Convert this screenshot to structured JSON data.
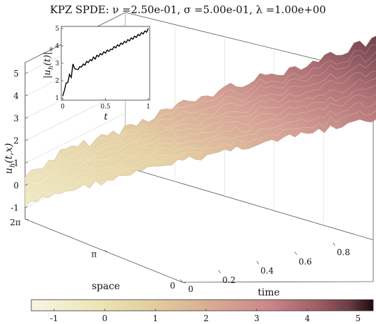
{
  "chart_data": {
    "type": "surface",
    "title": "KPZ SPDE: ν =2.50e-01, σ =5.00e-01, λ =1.00e+00",
    "zlabel": "u_h(t,x)",
    "zlabel_sub": "h",
    "zlabel_prefix": "u",
    "zlabel_suffix": "(t,x)",
    "xlabel": "time",
    "ylabel": "space",
    "time_ticks": [
      "0",
      "0.2",
      "0.4",
      "0.6",
      "0.8"
    ],
    "time_tick_values": [
      0,
      0.2,
      0.4,
      0.6,
      0.8
    ],
    "time_range": [
      0,
      1
    ],
    "space_ticks": [
      "0",
      "π",
      "2π"
    ],
    "space_tick_values": [
      0,
      3.1416,
      6.2832
    ],
    "space_range": [
      0,
      6.2832
    ],
    "z_ticks": [
      "-1",
      "0",
      "1",
      "2",
      "3",
      "4",
      "5"
    ],
    "z_tick_values": [
      -1,
      0,
      1,
      2,
      3,
      4,
      5
    ],
    "z_range": [
      -1.5,
      5.5
    ],
    "grid": true,
    "colorbar": {
      "ticks": [
        "-1",
        "0",
        "1",
        "2",
        "3",
        "4",
        "5"
      ],
      "tick_values": [
        -1,
        0,
        1,
        2,
        3,
        4,
        5
      ],
      "range": [
        -1.45,
        5.3
      ],
      "colors": [
        "#f7f4e6",
        "#ebe6b7",
        "#e2ca9a",
        "#d2a191",
        "#c98287",
        "#9e5d60",
        "#6b3b41",
        "#1f0a0e"
      ]
    },
    "surface_profile": {
      "description_time": [
        0,
        0.1,
        0.2,
        0.3,
        0.4,
        0.5,
        0.6,
        0.7,
        0.8,
        0.9,
        1.0
      ],
      "mean_height": [
        0.1,
        1.0,
        1.5,
        2.0,
        2.6,
        3.0,
        3.5,
        3.8,
        4.2,
        4.6,
        5.0
      ]
    },
    "inset": {
      "type": "line",
      "ylabel": "|u_h(t)|_∞",
      "ylabel_parts": [
        "|u",
        "h",
        "(t)|",
        "∞"
      ],
      "xlabel": "t",
      "x_ticks": [
        "0",
        "0.5",
        "1"
      ],
      "x_tick_values": [
        0,
        0.5,
        1
      ],
      "y_ticks": [
        "1",
        "2",
        "3",
        "4",
        "5"
      ],
      "y_tick_values": [
        1,
        2,
        3,
        4,
        5
      ],
      "xlim": [
        0,
        1
      ],
      "ylim": [
        1,
        5
      ],
      "x": [
        0.0,
        0.02,
        0.04,
        0.06,
        0.08,
        0.1,
        0.12,
        0.14,
        0.16,
        0.18,
        0.2,
        0.22,
        0.24,
        0.26,
        0.28,
        0.3,
        0.32,
        0.34,
        0.36,
        0.38,
        0.4,
        0.42,
        0.44,
        0.46,
        0.48,
        0.5,
        0.52,
        0.54,
        0.56,
        0.58,
        0.6,
        0.62,
        0.64,
        0.66,
        0.68,
        0.7,
        0.72,
        0.74,
        0.76,
        0.78,
        0.8,
        0.82,
        0.84,
        0.86,
        0.88,
        0.9,
        0.92,
        0.94,
        0.96,
        0.98,
        1.0
      ],
      "y": [
        1.05,
        1.5,
        1.8,
        1.95,
        2.3,
        2.25,
        2.9,
        2.75,
        2.6,
        2.7,
        2.75,
        2.85,
        2.9,
        2.95,
        3.05,
        3.1,
        3.15,
        3.2,
        3.3,
        3.3,
        3.4,
        3.45,
        3.5,
        3.55,
        3.6,
        3.65,
        3.7,
        3.75,
        3.75,
        3.85,
        3.9,
        3.95,
        4.0,
        4.05,
        4.1,
        4.15,
        4.2,
        4.25,
        4.3,
        4.35,
        4.4,
        4.45,
        4.5,
        4.55,
        4.6,
        4.65,
        4.7,
        4.75,
        4.8,
        4.85,
        4.95
      ]
    }
  }
}
